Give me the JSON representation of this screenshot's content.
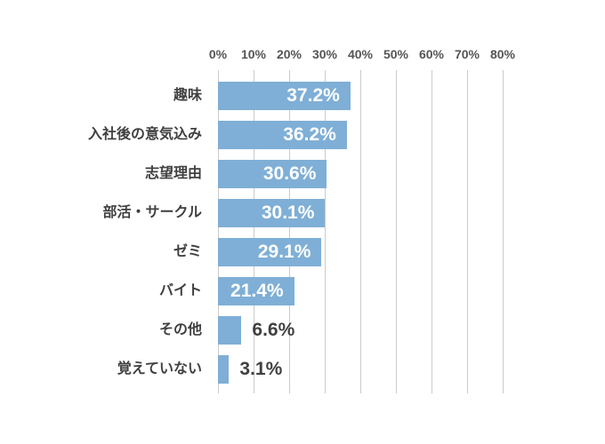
{
  "chart_data": {
    "type": "bar",
    "orientation": "horizontal",
    "categories": [
      "趣味",
      "入社後の意気込み",
      "志望理由",
      "部活・サークル",
      "ゼミ",
      "バイト",
      "その他",
      "覚えていない"
    ],
    "values": [
      37.2,
      36.2,
      30.6,
      30.1,
      29.1,
      21.4,
      6.6,
      3.1
    ],
    "value_labels": [
      "37.2%",
      "36.2%",
      "30.6%",
      "30.1%",
      "29.1%",
      "21.4%",
      "6.6%",
      "3.1%"
    ],
    "x_ticks": [
      "0%",
      "10%",
      "20%",
      "30%",
      "40%",
      "50%",
      "60%",
      "70%",
      "80%"
    ],
    "xlim": [
      0,
      80
    ],
    "grid": true,
    "legend": false,
    "title": "",
    "xlabel": "",
    "ylabel": ""
  },
  "colors": {
    "background": "#ffffff",
    "bar": "#7FAFD6",
    "grid": "#cbcbcb",
    "tick_text": "#555555",
    "category_text": "#404040",
    "value_inside": "#ffffff",
    "value_outside": "#404040"
  }
}
